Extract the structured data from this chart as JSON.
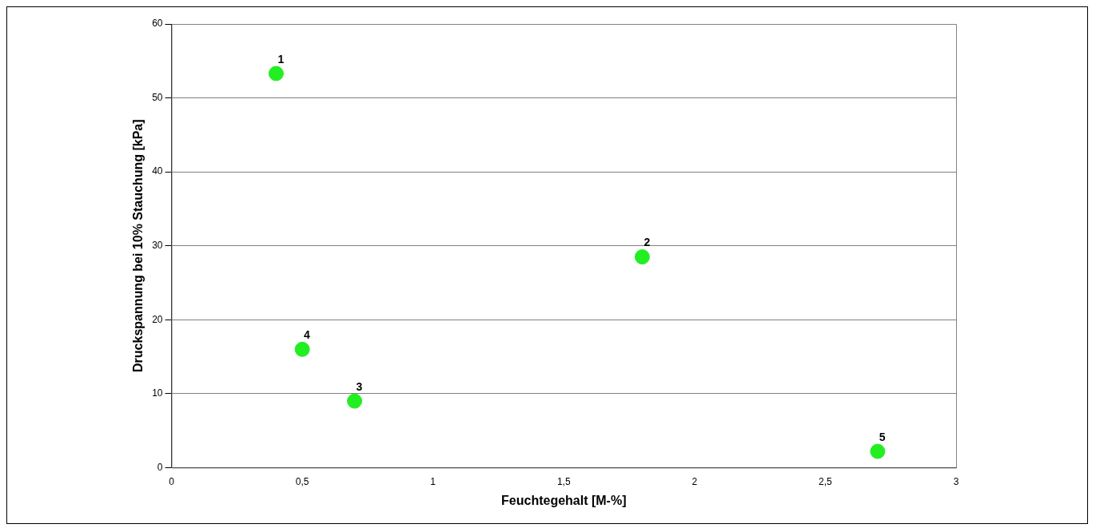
{
  "chart_data": {
    "type": "scatter",
    "xlabel": "Feuchtegehalt [M-%]",
    "ylabel": "Druckspannung bei 10% Stauchung [kPa]",
    "x": [
      0.4,
      1.8,
      0.7,
      0.5,
      2.7
    ],
    "values": [
      53.3,
      28.5,
      9.0,
      16.0,
      2.2
    ],
    "color": "#22ee22",
    "marker": "circle",
    "xlim": [
      0,
      3
    ],
    "xticks": [
      0,
      {
        "value": 0.5,
        "label": "0,5"
      },
      1,
      {
        "value": 1.5,
        "label": "1,5"
      },
      2,
      {
        "value": 2.5,
        "label": "2,5"
      },
      3
    ],
    "ylim": [
      0,
      60
    ],
    "yticks": [
      0,
      10,
      20,
      30,
      40,
      50,
      60
    ],
    "grid": "y",
    "legend": false,
    "annotations": [
      {
        "text": "1",
        "x": 0.4,
        "y": 53.3
      },
      {
        "text": "2",
        "x": 1.8,
        "y": 28.5
      },
      {
        "text": "3",
        "x": 0.7,
        "y": 9.0
      },
      {
        "text": "4",
        "x": 0.5,
        "y": 16.0
      },
      {
        "text": "5",
        "x": 2.7,
        "y": 2.2
      }
    ]
  }
}
